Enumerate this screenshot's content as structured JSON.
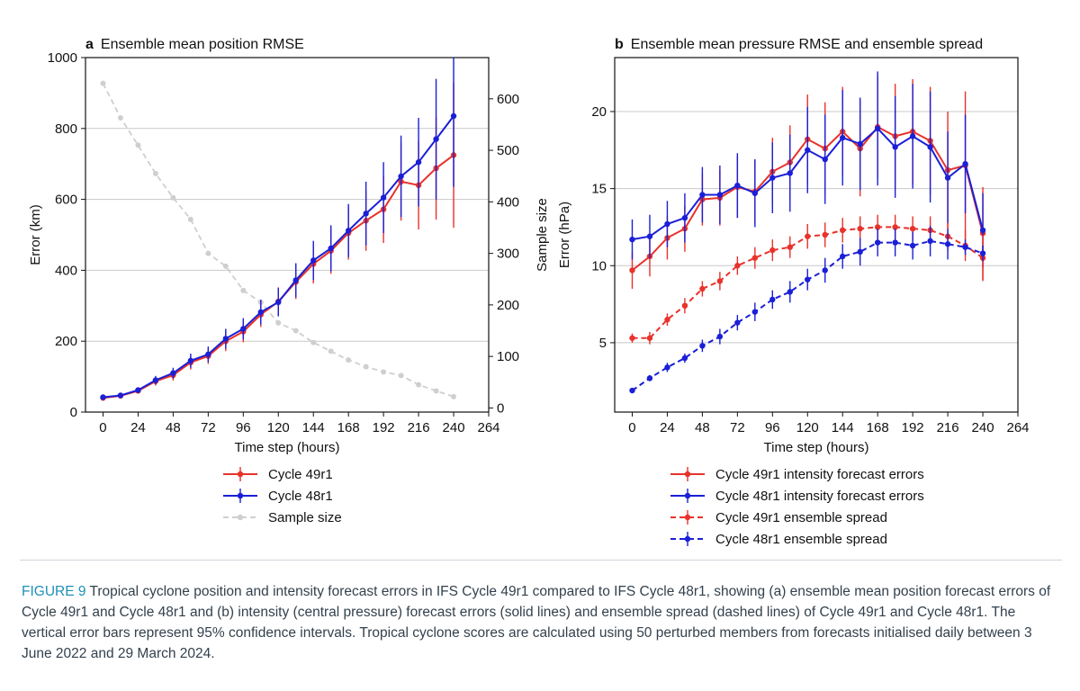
{
  "chart_data": [
    {
      "type": "line",
      "panel_letter": "a",
      "title": "Ensemble mean position RMSE",
      "xlabel": "Time step (hours)",
      "ylabel": "Error (km)",
      "y2label": "Sample size",
      "xlim": [
        -12,
        264
      ],
      "ylim": [
        0,
        1000
      ],
      "y2lim": [
        -8,
        680
      ],
      "xticks": [
        0,
        24,
        48,
        72,
        96,
        120,
        144,
        168,
        192,
        216,
        240,
        264
      ],
      "yticks": [
        0,
        200,
        400,
        600,
        800,
        1000
      ],
      "y2ticks": [
        0,
        100,
        200,
        300,
        400,
        500,
        600
      ],
      "grid": "horizontal",
      "legend_position": "below",
      "x": [
        0,
        12,
        24,
        36,
        48,
        60,
        72,
        84,
        96,
        108,
        120,
        132,
        144,
        156,
        168,
        180,
        192,
        204,
        216,
        228,
        240
      ],
      "series": [
        {
          "name": "Cycle 49r1",
          "color": "#e8322b",
          "style": "solid",
          "axis": "left",
          "values": [
            40,
            46,
            60,
            87,
            104,
            140,
            158,
            200,
            227,
            275,
            312,
            367,
            418,
            455,
            505,
            540,
            572,
            650,
            640,
            688,
            725
          ],
          "err": [
            5,
            5,
            8,
            12,
            15,
            20,
            22,
            28,
            30,
            35,
            40,
            48,
            55,
            65,
            75,
            85,
            95,
            110,
            125,
            145,
            205
          ]
        },
        {
          "name": "Cycle 48r1",
          "color": "#1b1fd6",
          "style": "solid",
          "axis": "left",
          "values": [
            42,
            47,
            62,
            90,
            110,
            145,
            163,
            207,
            235,
            282,
            310,
            372,
            428,
            462,
            512,
            560,
            605,
            665,
            705,
            770,
            835
          ],
          "err": [
            5,
            5,
            8,
            12,
            15,
            20,
            22,
            28,
            30,
            35,
            40,
            48,
            55,
            65,
            75,
            90,
            100,
            115,
            125,
            170,
            200
          ]
        },
        {
          "name": "Sample size",
          "color": "#cfcfcf",
          "style": "dashed",
          "axis": "right",
          "values": [
            630,
            563,
            510,
            455,
            408,
            366,
            300,
            275,
            228,
            205,
            165,
            150,
            127,
            110,
            93,
            80,
            70,
            63,
            45,
            33,
            22
          ]
        }
      ]
    },
    {
      "type": "line",
      "panel_letter": "b",
      "title": "Ensemble mean pressure RMSE and ensemble spread",
      "xlabel": "Time step (hours)",
      "ylabel": "Error (hPa)",
      "xlim": [
        -12,
        264
      ],
      "ylim": [
        0.5,
        23.5
      ],
      "xticks": [
        0,
        24,
        48,
        72,
        96,
        120,
        144,
        168,
        192,
        216,
        240,
        264
      ],
      "yticks": [
        5,
        10,
        15,
        20
      ],
      "grid": "horizontal",
      "legend_position": "below",
      "x": [
        0,
        12,
        24,
        36,
        48,
        60,
        72,
        84,
        96,
        108,
        120,
        132,
        144,
        156,
        168,
        180,
        192,
        204,
        216,
        228,
        240
      ],
      "series": [
        {
          "name": "Cycle 49r1 intensity forecast errors",
          "color": "#e8322b",
          "style": "solid",
          "values": [
            9.7,
            10.6,
            11.8,
            12.4,
            14.3,
            14.4,
            15.1,
            14.8,
            16.1,
            16.7,
            18.2,
            17.6,
            18.7,
            17.6,
            19.0,
            18.4,
            18.7,
            18.1,
            16.2,
            16.5,
            12.1
          ],
          "err": [
            1.2,
            1.3,
            1.4,
            1.5,
            1.7,
            1.8,
            2.0,
            2.1,
            2.2,
            2.4,
            2.9,
            3.0,
            2.9,
            3.1,
            3.3,
            3.4,
            3.4,
            3.5,
            3.8,
            4.8,
            3.0
          ]
        },
        {
          "name": "Cycle 48r1 intensity forecast errors",
          "color": "#1b1fd6",
          "style": "solid",
          "values": [
            11.7,
            11.9,
            12.7,
            13.1,
            14.6,
            14.6,
            15.2,
            14.7,
            15.7,
            16.0,
            17.5,
            16.9,
            18.3,
            17.9,
            18.9,
            17.7,
            18.4,
            17.7,
            15.7,
            16.6,
            12.3
          ],
          "err": [
            1.3,
            1.4,
            1.5,
            1.6,
            1.8,
            1.9,
            2.1,
            2.2,
            2.3,
            2.5,
            2.8,
            2.9,
            3.1,
            3.0,
            3.7,
            3.3,
            3.4,
            3.6,
            3.0,
            3.2,
            2.4
          ]
        },
        {
          "name": "Cycle 49r1 ensemble spread",
          "color": "#e8322b",
          "style": "dashed",
          "values": [
            5.3,
            5.3,
            6.5,
            7.4,
            8.5,
            9.0,
            10.0,
            10.5,
            11.0,
            11.2,
            11.9,
            12.0,
            12.3,
            12.4,
            12.5,
            12.5,
            12.4,
            12.3,
            11.9,
            11.3,
            10.5
          ],
          "err": [
            0.3,
            0.4,
            0.4,
            0.5,
            0.5,
            0.6,
            0.6,
            0.7,
            0.7,
            0.7,
            0.8,
            0.8,
            0.8,
            0.8,
            0.8,
            0.8,
            0.8,
            0.9,
            0.9,
            1.0,
            1.5
          ]
        },
        {
          "name": "Cycle 48r1 ensemble spread",
          "color": "#1b1fd6",
          "style": "dashed",
          "values": [
            1.9,
            2.7,
            3.4,
            4.0,
            4.8,
            5.4,
            6.3,
            7.0,
            7.8,
            8.3,
            9.1,
            9.7,
            10.6,
            10.9,
            11.5,
            11.5,
            11.3,
            11.6,
            11.4,
            11.2,
            10.8
          ],
          "err": [
            0.1,
            0.2,
            0.3,
            0.3,
            0.4,
            0.5,
            0.5,
            0.6,
            0.6,
            0.7,
            0.7,
            0.8,
            0.8,
            0.9,
            0.9,
            0.9,
            0.9,
            1.0,
            1.0,
            0.5,
            0.5
          ]
        }
      ]
    }
  ],
  "caption": {
    "label": "FIGURE 9",
    "text": "Tropical cyclone position and intensity forecast errors in IFS Cycle 49r1 compared to IFS Cycle 48r1, showing (a) ensemble mean position forecast errors of Cycle 49r1 and Cycle 48r1 and (b) intensity (central pressure) forecast errors (solid lines) and ensemble spread (dashed lines) of Cycle 49r1 and Cycle 48r1. The vertical error bars represent 95% confidence intervals. Tropical cyclone scores are calculated using 50 perturbed members from forecasts initialised daily between 3 June 2022 and 29 March 2024."
  }
}
